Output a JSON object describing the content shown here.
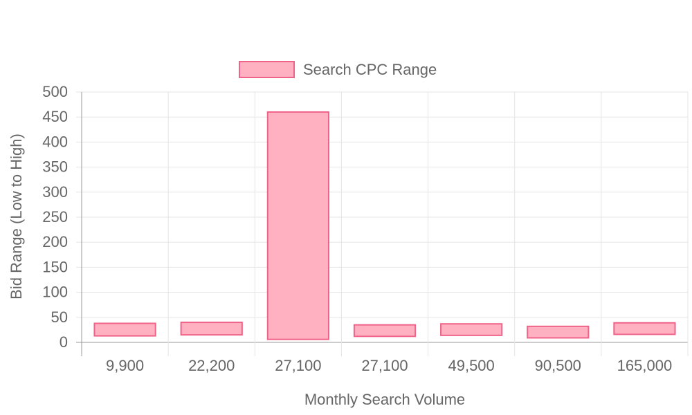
{
  "chart_data": {
    "type": "bar",
    "legend": {
      "position": "top",
      "label": "Search CPC Range"
    },
    "xlabel": "Monthly Search Volume",
    "ylabel": "Bid Range (Low to High)",
    "ylim": [
      0,
      500
    ],
    "yticks": [
      "0",
      "50",
      "100",
      "150",
      "200",
      "250",
      "300",
      "350",
      "400",
      "450",
      "500"
    ],
    "grid": true,
    "categories": [
      "9,900",
      "22,200",
      "27,100",
      "27,100",
      "49,500",
      "90,500",
      "165,000"
    ],
    "series": [
      {
        "name": "Search CPC Range",
        "low": [
          13,
          15,
          6,
          12,
          14,
          9,
          16
        ],
        "high": [
          38,
          40,
          460,
          35,
          37,
          32,
          39
        ]
      }
    ],
    "colors": {
      "bar_fill": "#ffb1c1",
      "bar_stroke": "#f06389",
      "grid": "#e5e5e5",
      "axis": "#999999",
      "text": "#666666"
    }
  }
}
